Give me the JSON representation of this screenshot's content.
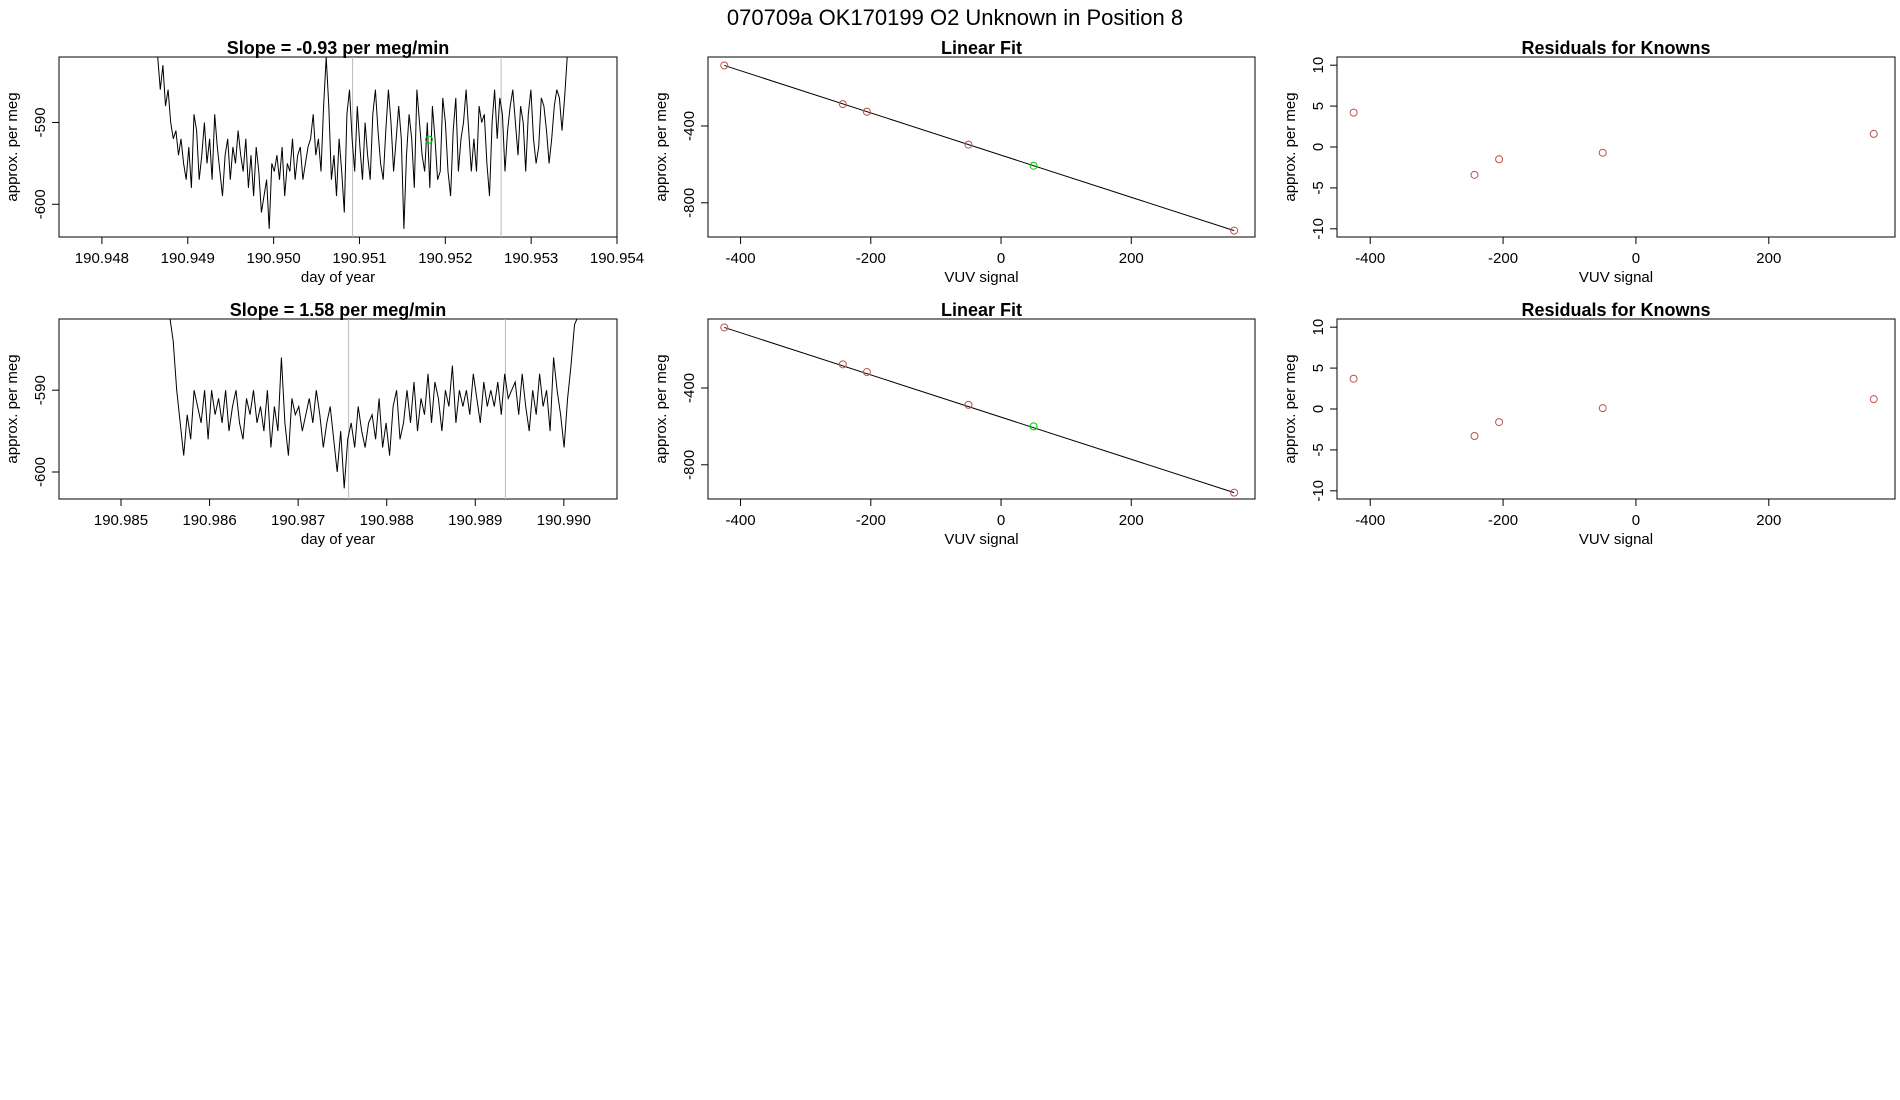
{
  "page_title": "070709a      OK170199   O2 Unknown in Position  8",
  "colors": {
    "line": "#000000",
    "known_point": "#c0504d",
    "unknown_point": "#00cc00",
    "divider": "#bbbbbb"
  },
  "chart_data": [
    {
      "type": "line",
      "title": "Slope =  -0.93  per meg/min",
      "xlabel": "day of year",
      "ylabel": "approx. per meg",
      "xlim": [
        190.9475,
        190.954
      ],
      "ylim": [
        -604,
        -582
      ],
      "xticks": [
        "190.948",
        "190.949",
        "190.950",
        "190.951",
        "190.952",
        "190.953",
        "190.954"
      ],
      "yticks": [
        "-590",
        "-600"
      ],
      "grid": false,
      "vlines": [
        190.95092,
        190.95265
      ],
      "x_start": 190.94865,
      "x_end": 190.95342,
      "y": [
        -582,
        -586,
        -583,
        -588,
        -586,
        -590,
        -592,
        -591,
        -594,
        -592,
        -595,
        -597,
        -593,
        -598,
        -589,
        -591,
        -597,
        -594,
        -590,
        -595,
        -592,
        -597,
        -589,
        -593,
        -596,
        -599,
        -594,
        -592,
        -597,
        -593,
        -595,
        -591,
        -594,
        -596,
        -592,
        -598,
        -594,
        -599,
        -593,
        -596,
        -601,
        -599,
        -597,
        -603,
        -595,
        -596,
        -594,
        -597,
        -593,
        -599,
        -595,
        -596,
        -592,
        -597,
        -594,
        -593,
        -597,
        -595,
        -593,
        -592,
        -589,
        -594,
        -592,
        -596,
        -588,
        -582,
        -588,
        -597,
        -594,
        -599,
        -592,
        -596,
        -601,
        -589,
        -586,
        -592,
        -596,
        -588,
        -593,
        -597,
        -590,
        -594,
        -597,
        -589,
        -586,
        -591,
        -595,
        -597,
        -591,
        -586,
        -590,
        -596,
        -592,
        -588,
        -592,
        -603,
        -594,
        -589,
        -592,
        -598,
        -586,
        -590,
        -594,
        -596,
        -590,
        -598,
        -588,
        -592,
        -597,
        -596,
        -587,
        -590,
        -596,
        -599,
        -591,
        -587,
        -596,
        -592,
        -590,
        -586,
        -591,
        -596,
        -592,
        -596,
        -588,
        -590,
        -589,
        -595,
        -599,
        -590,
        -586,
        -592,
        -587,
        -589,
        -596,
        -591,
        -588,
        -586,
        -590,
        -594,
        -588,
        -590,
        -596,
        -589,
        -586,
        -592,
        -595,
        -593,
        -587,
        -588,
        -591,
        -595,
        -592,
        -588,
        -586,
        -587,
        -591,
        -587,
        -582
      ],
      "unknown_point": {
        "x": 190.95181,
        "y": -592.1
      }
    },
    {
      "type": "scatter",
      "title": "Linear Fit",
      "xlabel": "VUV signal",
      "ylabel": "approx. per meg",
      "xlim": [
        -450,
        390
      ],
      "ylim": [
        -978,
        -41
      ],
      "xticks": [
        "-400",
        "-200",
        "0",
        "200"
      ],
      "yticks": [
        "-400",
        "-800"
      ],
      "grid": false,
      "fit_line": {
        "x": [
          -425,
          358
        ],
        "y": [
          -85,
          -945
        ]
      },
      "known_points": {
        "x": [
          -425,
          -243,
          -206,
          -50,
          358
        ],
        "y": [
          -85,
          -286,
          -326,
          -497,
          -945
        ]
      },
      "unknown_points": {
        "x": [
          50
        ],
        "y": [
          -607
        ]
      }
    },
    {
      "type": "scatter",
      "title": "Residuals for Knowns",
      "xlabel": "VUV signal",
      "ylabel": "approx. per meg",
      "xlim": [
        -450,
        390
      ],
      "ylim": [
        -11,
        11
      ],
      "xticks": [
        "-400",
        "-200",
        "0",
        "200"
      ],
      "yticks": [
        "-10",
        "-5",
        "0",
        "5",
        "10"
      ],
      "grid": false,
      "points": {
        "x": [
          -425,
          -243,
          -206,
          -50,
          358
        ],
        "y": [
          4.2,
          -3.4,
          -1.5,
          -0.7,
          1.6
        ]
      }
    },
    {
      "type": "line",
      "title": "Slope =  1.58  per meg/min",
      "xlabel": "day of year",
      "ylabel": "approx. per meg",
      "xlim": [
        190.9843,
        190.9906
      ],
      "ylim": [
        -603.3,
        -581.3
      ],
      "xticks": [
        "190.985",
        "190.986",
        "190.987",
        "190.988",
        "190.989",
        "190.990"
      ],
      "yticks": [
        "-590",
        "-600"
      ],
      "grid": false,
      "vlines": [
        190.98757,
        190.98934
      ],
      "x_start": 190.98555,
      "x_end": 190.99016,
      "y": [
        -581,
        -584,
        -590,
        -594,
        -598,
        -593,
        -596,
        -590,
        -592,
        -594,
        -590,
        -596,
        -590,
        -593,
        -591,
        -594,
        -590,
        -595,
        -592,
        -590,
        -594,
        -596,
        -591,
        -593,
        -590,
        -594,
        -592,
        -595,
        -590,
        -597,
        -592,
        -595,
        -586,
        -594,
        -598,
        -591,
        -593,
        -592,
        -595,
        -593,
        -591,
        -594,
        -590,
        -593,
        -597,
        -594,
        -592,
        -596,
        -600,
        -595,
        -602,
        -596,
        -594,
        -597,
        -592,
        -595,
        -597,
        -594,
        -593,
        -596,
        -591,
        -597,
        -594,
        -598,
        -592,
        -590,
        -596,
        -594,
        -590,
        -594,
        -589,
        -595,
        -591,
        -593,
        -588,
        -594,
        -589,
        -591,
        -595,
        -590,
        -592,
        -587,
        -594,
        -590,
        -592,
        -590,
        -593,
        -588,
        -591,
        -594,
        -589,
        -592,
        -590,
        -592,
        -589,
        -593,
        -588,
        -591,
        -590,
        -589,
        -593,
        -588,
        -592,
        -595,
        -590,
        -593,
        -588,
        -592,
        -590,
        -595,
        -586,
        -590,
        -593,
        -597,
        -591,
        -587,
        -582,
        -581
      ]
    },
    {
      "type": "scatter",
      "title": "Linear Fit",
      "xlabel": "VUV signal",
      "ylabel": "approx. per meg",
      "xlim": [
        -450,
        390
      ],
      "ylim": [
        -978,
        -41
      ],
      "xticks": [
        "-400",
        "-200",
        "0",
        "200"
      ],
      "yticks": [
        "-400",
        "-800"
      ],
      "grid": false,
      "fit_line": {
        "x": [
          -425,
          358
        ],
        "y": [
          -85,
          -945
        ]
      },
      "known_points": {
        "x": [
          -425,
          -243,
          -206,
          -50,
          358
        ],
        "y": [
          -85,
          -277,
          -317,
          -488,
          -945
        ]
      },
      "unknown_points": {
        "x": [
          50
        ],
        "y": [
          -600
        ]
      }
    },
    {
      "type": "scatter",
      "title": "Residuals for Knowns",
      "xlabel": "VUV signal",
      "ylabel": "approx. per meg",
      "xlim": [
        -450,
        390
      ],
      "ylim": [
        -11,
        11
      ],
      "xticks": [
        "-400",
        "-200",
        "0",
        "200"
      ],
      "yticks": [
        "-10",
        "-5",
        "0",
        "5",
        "10"
      ],
      "grid": false,
      "points": {
        "x": [
          -425,
          -243,
          -206,
          -50,
          358
        ],
        "y": [
          3.7,
          -3.3,
          -1.6,
          0.1,
          1.2
        ]
      }
    }
  ]
}
